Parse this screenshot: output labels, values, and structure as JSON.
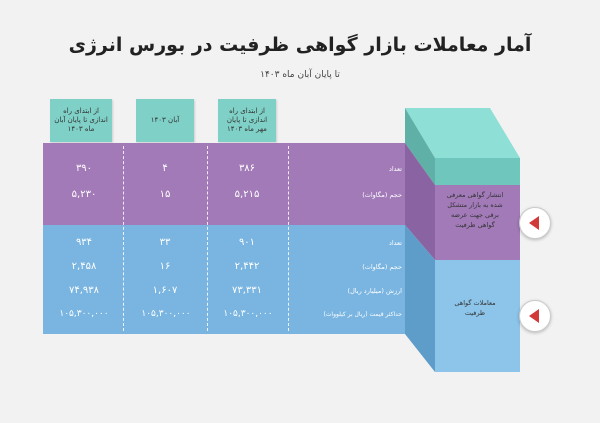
{
  "title": "آمار معاملات بازار گواهی ظرفیت در بورس انرژی",
  "subtitle": "تا پایان آبان ماه ۱۴۰۳",
  "columns": [
    {
      "label": "از ابتدای راه اندازی تا پایان آبان ماه ۱۴۰۳"
    },
    {
      "label": "آبان ۱۴۰۳"
    },
    {
      "label": "از ابتدای راه اندازی تا پایان مهر ماه ۱۴۰۳"
    }
  ],
  "purple_section": {
    "rows": [
      {
        "label": "تعداد",
        "values": [
          "۳۹۰",
          "۴",
          "۳۸۶"
        ]
      },
      {
        "label": "حجم (مگاوات)",
        "values": [
          "۵,۲۳۰",
          "۱۵",
          "۵,۲۱۵"
        ]
      }
    ]
  },
  "blue_section": {
    "rows": [
      {
        "label": "تعداد",
        "values": [
          "۹۳۴",
          "۳۳",
          "۹۰۱"
        ]
      },
      {
        "label": "حجم (مگاوات)",
        "values": [
          "۲,۴۵۸",
          "۱۶",
          "۲,۴۴۲"
        ]
      },
      {
        "label": "ارزش (میلیارد ریال)",
        "values": [
          "۷۴,۹۳۸",
          "۱,۶۰۷",
          "۷۳,۳۳۱"
        ]
      },
      {
        "label": "حداکثر قیمت (ریال بر کیلووات)",
        "values": [
          "۱۰۵,۳۰۰,۰۰۰",
          "۱۰۵,۳۰۰,۰۰۰",
          "۱۰۵,۳۰۰,۰۰۰"
        ]
      }
    ]
  },
  "side_panels": {
    "purple_label": "انتشار گواهی معرفی شده به بازار متشکل برقی جهت عرضه گواهی ظرفیت",
    "blue_label": "معاملات گواهی ظرفیت"
  },
  "colors": {
    "teal": "#7fd0c7",
    "purple": "#a27ab8",
    "blue": "#79b5e0",
    "arrow": "#d23a3a"
  }
}
